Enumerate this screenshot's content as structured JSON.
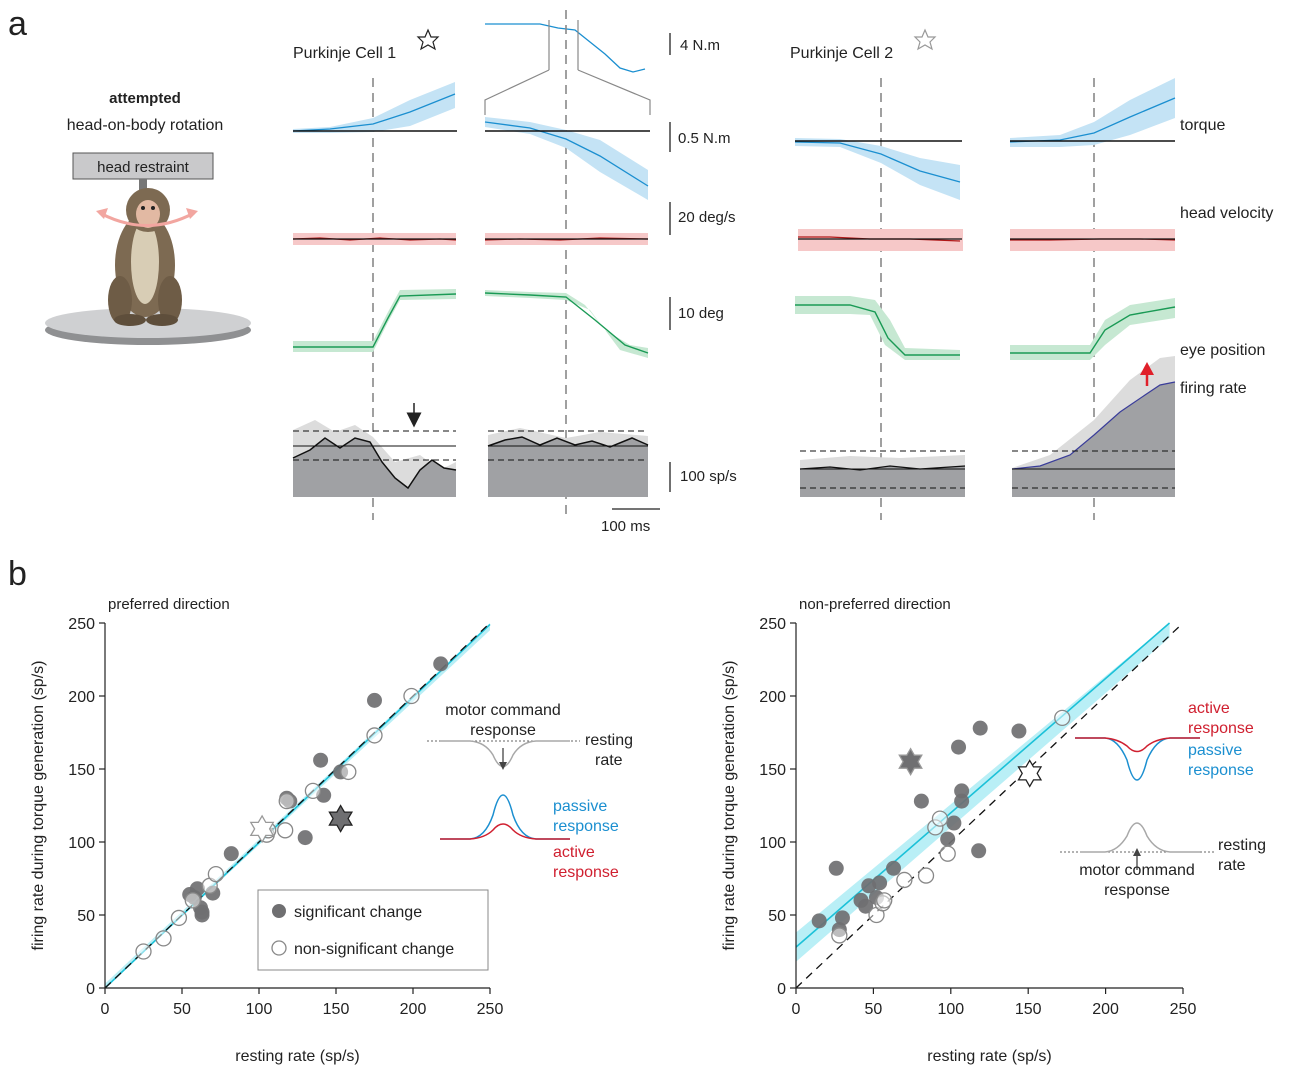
{
  "panel_labels": {
    "a": "a",
    "b": "b"
  },
  "panel_a": {
    "left_caption": {
      "bold": "attempted",
      "line2": "head-on-body rotation",
      "restraint": "head restraint"
    },
    "cell1_title": "Purkinje Cell 1",
    "cell2_title": "Purkinje Cell 2",
    "row_labels": {
      "torque": "torque",
      "head_velocity": "head velocity",
      "eye_position": "eye position",
      "firing_rate": "firing rate"
    },
    "scale_bars": {
      "torque_inset": "4 N.m",
      "torque": "0.5 N.m",
      "velocity": "20 deg/s",
      "position": "10 deg",
      "rate": "100 sp/s",
      "time": "100 ms"
    },
    "colors": {
      "torque": "#1b8fd0",
      "torque_band": "#c4e3f5",
      "velocity": "#b01818",
      "velocity_band": "#f6c8c8",
      "eye": "#1a9a55",
      "eye_band": "#c6e8d2",
      "rate_fill": "#a0a1a4",
      "rate_band": "#dcdcdc",
      "arrow_red": "#e0202a"
    }
  },
  "legend": {
    "significant": "significant change",
    "nonsignificant": "non-significant change"
  },
  "schematics": {
    "left": {
      "top_lines": [
        "motor command",
        "response"
      ],
      "resting": [
        "resting",
        "rate"
      ],
      "passive": [
        "passive",
        "response"
      ],
      "active": [
        "active",
        "response"
      ]
    },
    "right": {
      "active": [
        "active",
        "response"
      ],
      "passive": [
        "passive",
        "response"
      ],
      "bottom_lines": [
        "motor command",
        "response"
      ],
      "resting": [
        "resting",
        "rate"
      ]
    }
  },
  "chart_data": [
    {
      "type": "scatter",
      "title": "preferred direction",
      "xlabel": "resting rate (sp/s)",
      "ylabel": "firing rate during torque generation (sp/s)",
      "xlim": [
        0,
        250
      ],
      "ylim": [
        0,
        250
      ],
      "xticks": [
        0,
        50,
        100,
        150,
        200,
        250
      ],
      "yticks": [
        0,
        50,
        100,
        150,
        200,
        250
      ],
      "identity_line": true,
      "fit": {
        "slope": 1.0,
        "intercept": -1,
        "color": "#1bc1d8"
      },
      "series": [
        {
          "name": "significant change",
          "marker": "filled",
          "points": [
            [
              55,
              64
            ],
            [
              58,
              62
            ],
            [
              60,
              68
            ],
            [
              62,
              55
            ],
            [
              63,
              52
            ],
            [
              63,
              50
            ],
            [
              70,
              65
            ],
            [
              82,
              92
            ],
            [
              118,
              130
            ],
            [
              120,
              128
            ],
            [
              130,
              103
            ],
            [
              140,
              156
            ],
            [
              142,
              132
            ],
            [
              153,
              148
            ],
            [
              175,
              197
            ],
            [
              218,
              222
            ]
          ]
        },
        {
          "name": "non-significant change",
          "marker": "open",
          "points": [
            [
              25,
              25
            ],
            [
              38,
              34
            ],
            [
              48,
              48
            ],
            [
              57,
              60
            ],
            [
              68,
              70
            ],
            [
              72,
              78
            ],
            [
              105,
              105
            ],
            [
              106,
              108
            ],
            [
              117,
              108
            ],
            [
              118,
              128
            ],
            [
              135,
              135
            ],
            [
              158,
              148
            ],
            [
              175,
              173
            ],
            [
              199,
              200
            ]
          ]
        }
      ],
      "highlighted": [
        {
          "cell": "Purkinje Cell 1",
          "x": 153,
          "y": 116
        },
        {
          "cell": "Purkinje Cell 2",
          "x": 102,
          "y": 109
        }
      ]
    },
    {
      "type": "scatter",
      "title": "non-preferred direction",
      "xlabel": "resting rate (sp/s)",
      "ylabel": "firing rate during torque generation (sp/s)",
      "xlim": [
        0,
        250
      ],
      "ylim": [
        0,
        250
      ],
      "xticks": [
        0,
        50,
        100,
        150,
        200,
        250
      ],
      "yticks": [
        0,
        50,
        100,
        150,
        200,
        250
      ],
      "identity_line": true,
      "fit": {
        "slope": 0.92,
        "intercept": 28,
        "color": "#1bc1d8"
      },
      "series": [
        {
          "name": "significant change",
          "marker": "filled",
          "points": [
            [
              15,
              46
            ],
            [
              26,
              82
            ],
            [
              28,
              40
            ],
            [
              30,
              48
            ],
            [
              42,
              60
            ],
            [
              45,
              56
            ],
            [
              47,
              70
            ],
            [
              52,
              62
            ],
            [
              54,
              72
            ],
            [
              63,
              82
            ],
            [
              74,
              155
            ],
            [
              81,
              128
            ],
            [
              98,
              102
            ],
            [
              102,
              113
            ],
            [
              105,
              165
            ],
            [
              107,
              135
            ],
            [
              107,
              128
            ],
            [
              118,
              94
            ],
            [
              119,
              178
            ],
            [
              144,
              176
            ]
          ]
        },
        {
          "name": "non-significant change",
          "marker": "open",
          "points": [
            [
              28,
              36
            ],
            [
              52,
              50
            ],
            [
              56,
              58
            ],
            [
              57,
              60
            ],
            [
              70,
              74
            ],
            [
              84,
              77
            ],
            [
              90,
              110
            ],
            [
              93,
              116
            ],
            [
              98,
              92
            ],
            [
              172,
              185
            ]
          ]
        }
      ],
      "highlighted": [
        {
          "cell": "Purkinje Cell 1",
          "x": 151,
          "y": 147
        },
        {
          "cell": "Purkinje Cell 2",
          "x": 74,
          "y": 155
        }
      ]
    }
  ]
}
